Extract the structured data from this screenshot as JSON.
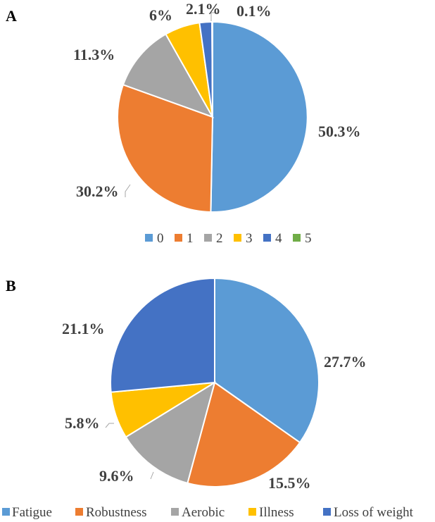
{
  "chart_data": [
    {
      "type": "pie",
      "panel_label": "A",
      "categories": [
        "0",
        "1",
        "2",
        "3",
        "4",
        "5"
      ],
      "values": [
        50.3,
        30.2,
        11.3,
        6.0,
        2.1,
        0.1
      ],
      "data_labels": [
        "50.3%",
        "30.2%",
        "11.3%",
        "6%",
        "2.1%",
        "0.1%"
      ],
      "colors": [
        "#5b9bd5",
        "#ed7d31",
        "#a5a5a5",
        "#ffc000",
        "#4472c4",
        "#70ad47"
      ],
      "legend": [
        "0",
        "1",
        "2",
        "3",
        "4",
        "5"
      ],
      "legend_position": "bottom"
    },
    {
      "type": "pie",
      "panel_label": "B",
      "categories": [
        "Fatigue",
        "Robustness",
        "Aerobic",
        "Illness",
        "Loss of weight"
      ],
      "values": [
        27.7,
        15.5,
        9.6,
        5.8,
        21.1
      ],
      "data_labels": [
        "27.7%",
        "15.5%",
        "9.6%",
        "5.8%",
        "21.1%"
      ],
      "colors": [
        "#5b9bd5",
        "#ed7d31",
        "#a5a5a5",
        "#ffc000",
        "#4472c4"
      ],
      "legend": [
        "Fatigue",
        "Robustness",
        "Aerobic",
        "Illness",
        "Loss of weight"
      ],
      "legend_position": "bottom"
    }
  ]
}
